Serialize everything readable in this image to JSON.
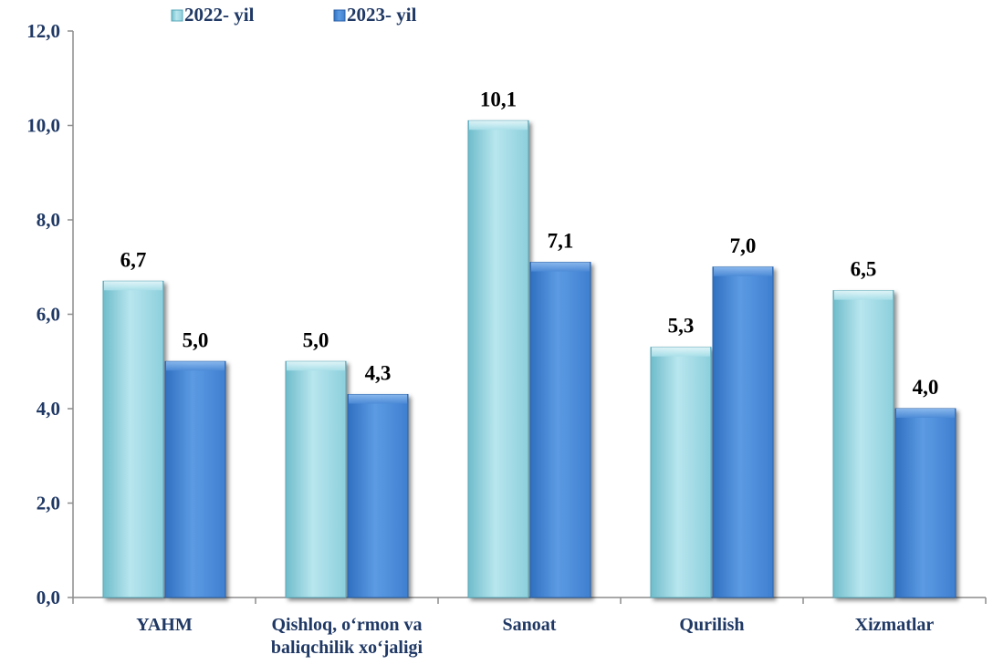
{
  "chart_data": {
    "type": "bar",
    "categories": [
      [
        "YAHM"
      ],
      [
        "Qishloq, o‘rmon va",
        "baliqchilik xo‘jaligi"
      ],
      [
        "Sanoat"
      ],
      [
        "Qurilish"
      ],
      [
        "Xizmatlar"
      ]
    ],
    "series": [
      {
        "name": "2022- yil",
        "values": [
          6.7,
          5.0,
          10.1,
          5.3,
          6.5
        ],
        "value_labels": [
          "6,7",
          "5,0",
          "10,1",
          "5,3",
          "6,5"
        ],
        "color": "#9fd8e3"
      },
      {
        "name": "2023- yil",
        "values": [
          5.0,
          4.3,
          7.1,
          7.0,
          4.0
        ],
        "value_labels": [
          "5,0",
          "4,3",
          "7,1",
          "7,0",
          "4,0"
        ],
        "color": "#4f8fdc"
      }
    ],
    "ylim": [
      0,
      12
    ],
    "yticks": [
      0,
      2,
      4,
      6,
      8,
      10,
      12
    ],
    "ytick_labels": [
      "0,0",
      "2,0",
      "4,0",
      "6,0",
      "8,0",
      "10,0",
      "12,0"
    ],
    "grid": false,
    "legend_position": "top-left",
    "axis_text_color": "#1f3864"
  }
}
